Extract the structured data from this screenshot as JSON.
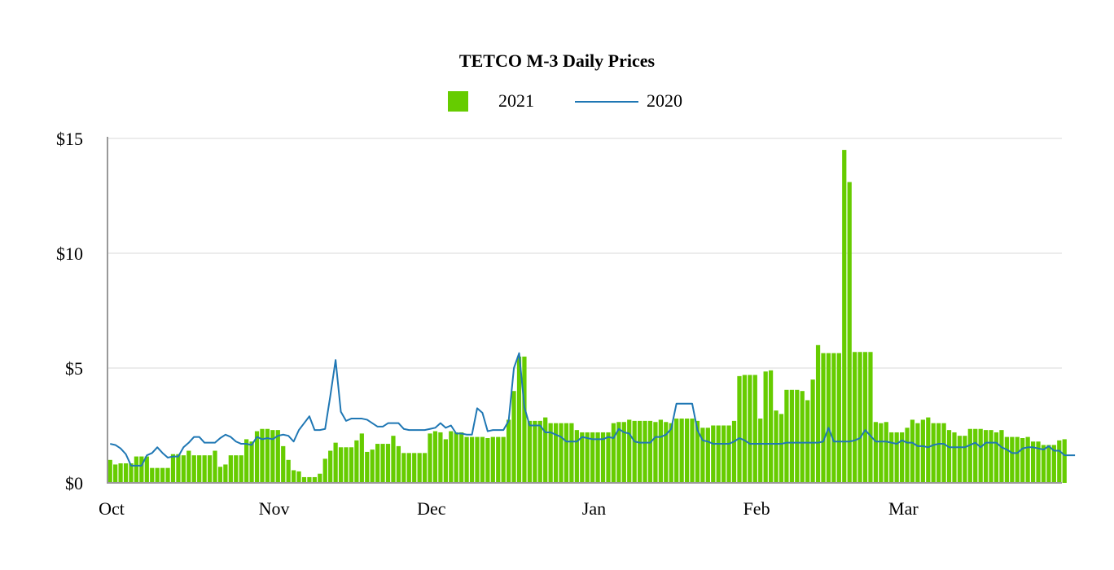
{
  "chart_data": {
    "type": "bar",
    "title": "TETCO M-3 Daily Prices",
    "xlabel": "",
    "ylabel": "",
    "ylim": [
      0,
      15
    ],
    "y_ticks": [
      "$0",
      "$5",
      "$10",
      "$15"
    ],
    "y_tick_values": [
      0,
      5,
      10,
      15
    ],
    "x_ticks": [
      {
        "label": "Oct",
        "day": 0
      },
      {
        "label": "Nov",
        "day": 31
      },
      {
        "label": "Dec",
        "day": 61
      },
      {
        "label": "Jan",
        "day": 92
      },
      {
        "label": "Feb",
        "day": 123
      },
      {
        "label": "Mar",
        "day": 151
      }
    ],
    "x_range_days": [
      0,
      182
    ],
    "grid": true,
    "legend_position": "top-center",
    "colors": {
      "bar": "#66cc00",
      "line": "#1f77b4",
      "grid": "#e6e6e6",
      "axis": "#999999"
    },
    "series": [
      {
        "name": "2021",
        "type": "bar",
        "values": [
          1.0,
          0.8,
          0.85,
          0.85,
          0.85,
          1.15,
          1.15,
          1.15,
          0.65,
          0.65,
          0.65,
          0.65,
          1.25,
          1.25,
          1.2,
          1.4,
          1.2,
          1.2,
          1.2,
          1.2,
          1.4,
          0.7,
          0.8,
          1.2,
          1.2,
          1.2,
          1.9,
          1.8,
          2.25,
          2.35,
          2.35,
          2.3,
          2.3,
          1.6,
          1.0,
          0.55,
          0.5,
          0.25,
          0.25,
          0.25,
          0.4,
          1.05,
          1.4,
          1.75,
          1.55,
          1.55,
          1.55,
          1.85,
          2.15,
          1.35,
          1.45,
          1.7,
          1.7,
          1.7,
          2.05,
          1.6,
          1.3,
          1.3,
          1.3,
          1.3,
          1.3,
          2.15,
          2.25,
          2.2,
          1.9,
          2.25,
          2.2,
          2.2,
          2.0,
          2.0,
          2.0,
          2.0,
          1.95,
          2.0,
          2.0,
          2.0,
          2.75,
          4.0,
          5.5,
          5.5,
          2.7,
          2.7,
          2.7,
          2.85,
          2.6,
          2.6,
          2.6,
          2.6,
          2.6,
          2.3,
          2.2,
          2.2,
          2.2,
          2.2,
          2.2,
          2.2,
          2.6,
          2.65,
          2.65,
          2.75,
          2.7,
          2.7,
          2.7,
          2.7,
          2.65,
          2.75,
          2.65,
          2.6,
          2.8,
          2.8,
          2.8,
          2.8,
          2.7,
          2.4,
          2.4,
          2.5,
          2.5,
          2.5,
          2.5,
          2.7,
          4.65,
          4.7,
          4.7,
          4.7,
          2.8,
          4.85,
          4.9,
          3.15,
          3.0,
          4.05,
          4.05,
          4.05,
          4.0,
          3.6,
          4.5,
          6.0,
          5.65,
          5.65,
          5.65,
          5.65,
          14.5,
          13.1,
          5.7,
          5.7,
          5.7,
          5.7,
          2.65,
          2.6,
          2.65,
          2.2,
          2.2,
          2.2,
          2.4,
          2.75,
          2.6,
          2.75,
          2.85,
          2.6,
          2.6,
          2.6,
          2.3,
          2.2,
          2.05,
          2.05,
          2.35,
          2.35,
          2.35,
          2.3,
          2.3,
          2.2,
          2.3,
          2.0,
          2.0,
          2.0,
          1.95,
          2.0,
          1.8,
          1.8,
          1.65,
          1.65,
          1.65,
          1.85,
          1.9
        ]
      },
      {
        "name": "2020",
        "type": "line",
        "values": [
          1.7,
          1.65,
          1.5,
          1.25,
          0.75,
          0.75,
          0.75,
          1.2,
          1.3,
          1.55,
          1.3,
          1.1,
          1.15,
          1.15,
          1.55,
          1.75,
          2.0,
          2.0,
          1.75,
          1.75,
          1.75,
          1.95,
          2.1,
          2.0,
          1.8,
          1.7,
          1.7,
          1.65,
          2.0,
          1.9,
          1.95,
          1.9,
          2.05,
          2.1,
          2.05,
          1.8,
          2.3,
          2.6,
          2.9,
          2.3,
          2.3,
          2.35,
          3.8,
          5.35,
          3.1,
          2.7,
          2.8,
          2.8,
          2.8,
          2.75,
          2.6,
          2.45,
          2.45,
          2.6,
          2.6,
          2.6,
          2.35,
          2.3,
          2.3,
          2.3,
          2.3,
          2.35,
          2.4,
          2.6,
          2.4,
          2.5,
          2.15,
          2.15,
          2.1,
          2.1,
          3.25,
          3.05,
          2.25,
          2.3,
          2.3,
          2.3,
          2.7,
          5.0,
          5.65,
          3.3,
          2.5,
          2.5,
          2.5,
          2.2,
          2.2,
          2.1,
          2.0,
          1.8,
          1.8,
          1.8,
          2.0,
          1.95,
          1.9,
          1.9,
          1.9,
          2.0,
          1.95,
          2.35,
          2.2,
          2.15,
          1.8,
          1.75,
          1.75,
          1.75,
          2.0,
          2.0,
          2.1,
          2.35,
          3.45,
          3.45,
          3.45,
          3.45,
          2.3,
          1.85,
          1.8,
          1.7,
          1.7,
          1.7,
          1.7,
          1.8,
          1.95,
          1.85,
          1.7,
          1.7,
          1.7,
          1.7,
          1.7,
          1.7,
          1.7,
          1.75,
          1.75,
          1.75,
          1.75,
          1.75,
          1.75,
          1.75,
          1.8,
          2.4,
          1.8,
          1.8,
          1.8,
          1.8,
          1.85,
          1.95,
          2.3,
          2.05,
          1.8,
          1.8,
          1.8,
          1.75,
          1.7,
          1.85,
          1.75,
          1.75,
          1.6,
          1.6,
          1.55,
          1.65,
          1.7,
          1.7,
          1.55,
          1.55,
          1.55,
          1.55,
          1.65,
          1.75,
          1.55,
          1.75,
          1.75,
          1.75,
          1.55,
          1.45,
          1.3,
          1.3,
          1.5,
          1.55,
          1.55,
          1.5,
          1.45,
          1.6,
          1.4,
          1.4,
          1.2,
          1.2,
          1.2
        ]
      }
    ]
  }
}
